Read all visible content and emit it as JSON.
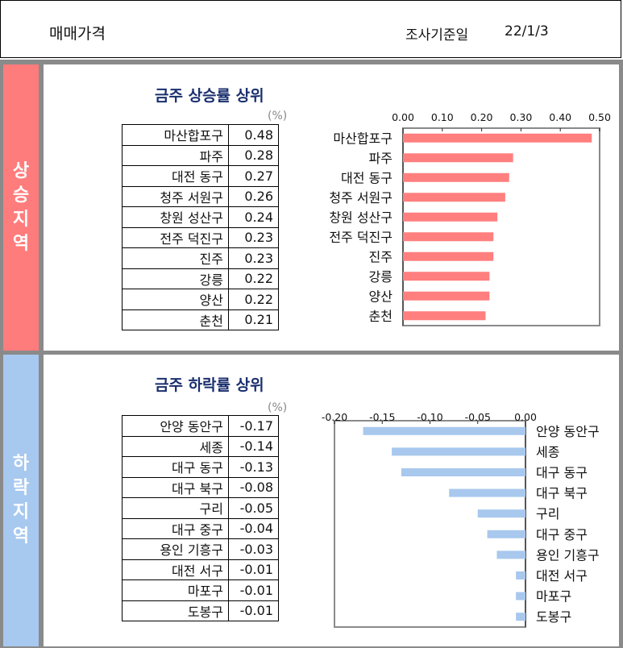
{
  "header": {
    "title": "매매가격",
    "date_label": "조사기준일",
    "date_value": "22/1/3"
  },
  "rise": {
    "side_label": "상승지역",
    "title": "금주 상승률 상위",
    "unit": "(%)",
    "rows": [
      {
        "name": "마산합포구",
        "value": "0.48"
      },
      {
        "name": "파주",
        "value": "0.28"
      },
      {
        "name": "대전 동구",
        "value": "0.27"
      },
      {
        "name": "청주 서원구",
        "value": "0.26"
      },
      {
        "name": "창원 성산구",
        "value": "0.24"
      },
      {
        "name": "전주 덕진구",
        "value": "0.23"
      },
      {
        "name": "진주",
        "value": "0.23"
      },
      {
        "name": "강릉",
        "value": "0.22"
      },
      {
        "name": "양산",
        "value": "0.22"
      },
      {
        "name": "춘천",
        "value": "0.21"
      }
    ]
  },
  "fall": {
    "side_label": "하락지역",
    "title": "금주 하락률 상위",
    "unit": "(%)",
    "rows": [
      {
        "name": "안양 동안구",
        "value": "-0.17"
      },
      {
        "name": "세종",
        "value": "-0.14"
      },
      {
        "name": "대구 동구",
        "value": "-0.13"
      },
      {
        "name": "대구 북구",
        "value": "-0.08"
      },
      {
        "name": "구리",
        "value": "-0.05"
      },
      {
        "name": "대구 중구",
        "value": "-0.04"
      },
      {
        "name": "용인 기흥구",
        "value": "-0.03"
      },
      {
        "name": "대전 서구",
        "value": "-0.01"
      },
      {
        "name": "마포구",
        "value": "-0.01"
      },
      {
        "name": "도봉구",
        "value": "-0.01"
      }
    ]
  },
  "chart_data": [
    {
      "type": "bar",
      "orientation": "horizontal",
      "title": "금주 상승률 상위",
      "categories": [
        "마산합포구",
        "파주",
        "대전 동구",
        "청주 서원구",
        "창원 성산구",
        "전주 덕진구",
        "진주",
        "강릉",
        "양산",
        "춘천"
      ],
      "values": [
        0.48,
        0.28,
        0.27,
        0.26,
        0.24,
        0.23,
        0.23,
        0.22,
        0.22,
        0.21
      ],
      "xlim": [
        0,
        0.5
      ],
      "ticks": [
        "0.00",
        "0.10",
        "0.20",
        "0.30",
        "0.40",
        "0.50"
      ],
      "axis_position": "top",
      "grid": false,
      "color": "#ff7f7f"
    },
    {
      "type": "bar",
      "orientation": "horizontal",
      "title": "금주 하락률 상위",
      "categories": [
        "안양 동안구",
        "세종",
        "대구 동구",
        "대구 북구",
        "구리",
        "대구 중구",
        "용인 기흥구",
        "대전 서구",
        "마포구",
        "도봉구"
      ],
      "values": [
        -0.17,
        -0.14,
        -0.13,
        -0.08,
        -0.05,
        -0.04,
        -0.03,
        -0.01,
        -0.01,
        -0.01
      ],
      "xlim": [
        -0.2,
        0
      ],
      "ticks": [
        "-0.20",
        "-0.15",
        "-0.10",
        "-0.05",
        "0.00"
      ],
      "axis_position": "top",
      "grid": false,
      "color": "#a8c8ee"
    }
  ]
}
